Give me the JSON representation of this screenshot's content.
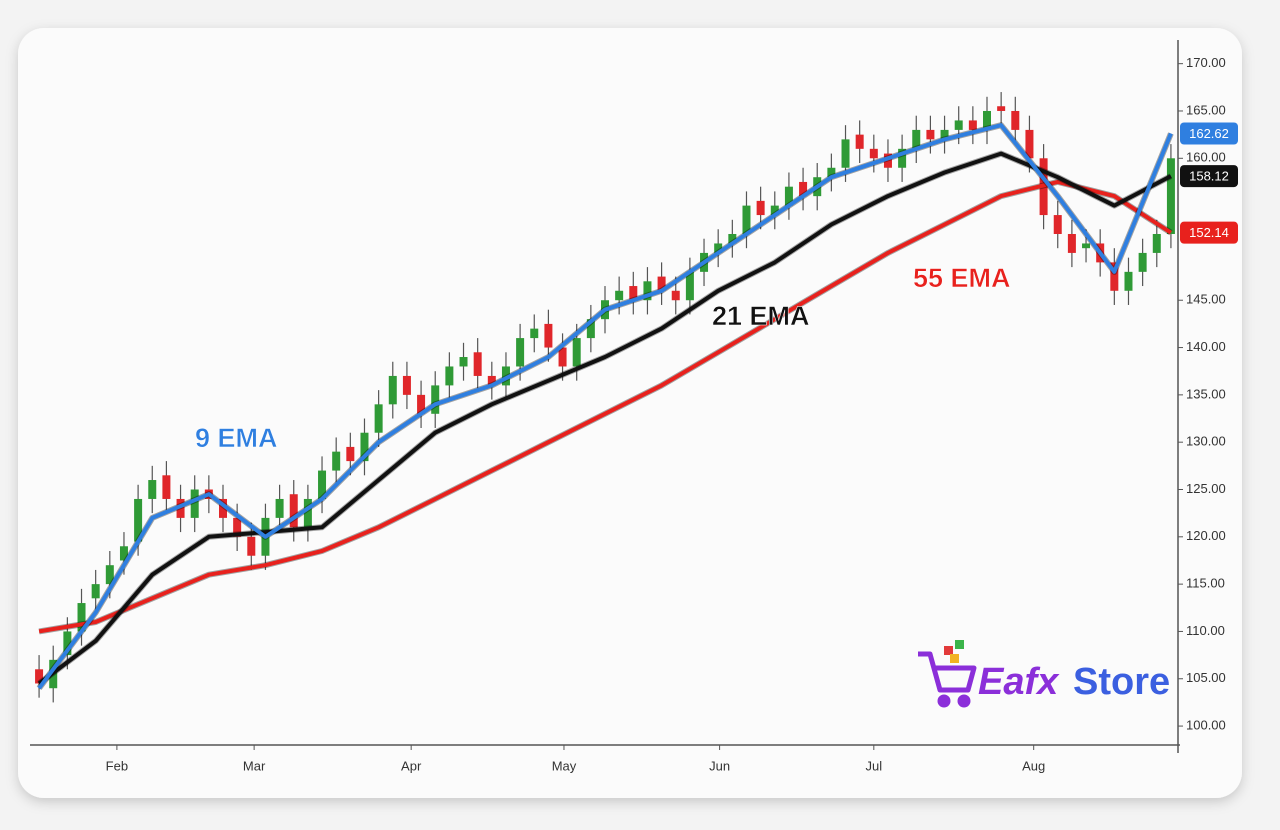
{
  "chart_data": {
    "type": "candlestick",
    "xlim": [
      -0.5,
      80.5
    ],
    "xticks": [
      {
        "value": 5.5,
        "label": "Feb"
      },
      {
        "value": 15.2,
        "label": "Mar"
      },
      {
        "value": 26.3,
        "label": "Apr"
      },
      {
        "value": 37.1,
        "label": "May"
      },
      {
        "value": 48.1,
        "label": "Jun"
      },
      {
        "value": 59,
        "label": "Jul"
      },
      {
        "value": 70.3,
        "label": "Aug"
      }
    ],
    "ylim": [
      98,
      172.5
    ],
    "yticks": [
      {
        "value": 100,
        "label": "100.00"
      },
      {
        "value": 105,
        "label": "105.00"
      },
      {
        "value": 110,
        "label": "110.00"
      },
      {
        "value": 115,
        "label": "115.00"
      },
      {
        "value": 120,
        "label": "120.00"
      },
      {
        "value": 125,
        "label": "125.00"
      },
      {
        "value": 130,
        "label": "130.00"
      },
      {
        "value": 135,
        "label": "135.00"
      },
      {
        "value": 140,
        "label": "140.00"
      },
      {
        "value": 145,
        "label": "145.00"
      },
      {
        "value": 160,
        "label": "160.00"
      },
      {
        "value": 165,
        "label": "165.00"
      },
      {
        "value": 170,
        "label": "170.00"
      }
    ],
    "up_color": "#2f9a36",
    "down_color": "#e0262a",
    "candles": {
      "x": [
        0,
        1,
        2,
        3,
        4,
        5,
        6,
        7,
        8,
        9,
        10,
        11,
        12,
        13,
        14,
        15,
        16,
        17,
        18,
        19,
        20,
        21,
        22,
        23,
        24,
        25,
        26,
        27,
        28,
        29,
        30,
        31,
        32,
        33,
        34,
        35,
        36,
        37,
        38,
        39,
        40,
        41,
        42,
        43,
        44,
        45,
        46,
        47,
        48,
        49,
        50,
        51,
        52,
        53,
        54,
        55,
        56,
        57,
        58,
        59,
        60,
        61,
        62,
        63,
        64,
        65,
        66,
        67,
        68,
        69,
        70,
        71,
        72,
        73,
        74,
        75,
        76,
        77,
        78,
        79,
        80
      ],
      "open": [
        106,
        104,
        107.5,
        110,
        113.5,
        115,
        117.5,
        119.5,
        124,
        126.5,
        124,
        122,
        125,
        124,
        122,
        120,
        118,
        122,
        124.5,
        121,
        124,
        127,
        129.5,
        128,
        131,
        134,
        137,
        135,
        133,
        136,
        138,
        139.5,
        137,
        136,
        138,
        141,
        142.5,
        140,
        138,
        141,
        143,
        145,
        146.5,
        145,
        147.5,
        146,
        145,
        148,
        150,
        151,
        152,
        155.5,
        154,
        155,
        157.5,
        156,
        158,
        159,
        162.5,
        161,
        160.5,
        159,
        161,
        163,
        162,
        163,
        164,
        163,
        165.5,
        165,
        163,
        160,
        154,
        152,
        150.5,
        151,
        149,
        146,
        148,
        150,
        152
      ],
      "high": [
        107.5,
        108.5,
        111.5,
        114.5,
        116.5,
        118.5,
        120.5,
        125.5,
        127.5,
        128,
        125.5,
        126.5,
        126.5,
        125.5,
        123.5,
        121.5,
        123.5,
        125.5,
        126,
        125.5,
        128.5,
        130.5,
        131,
        132.5,
        135.5,
        138.5,
        138.5,
        136.5,
        137.5,
        139.5,
        140.5,
        141,
        138.5,
        139.5,
        142.5,
        143.5,
        144,
        141.5,
        142.5,
        144.5,
        146.5,
        147.5,
        148,
        148.5,
        149,
        147.5,
        149.5,
        151.5,
        152.5,
        153.5,
        156.5,
        157,
        156.5,
        158.5,
        159,
        159.5,
        160.5,
        163.5,
        164,
        162.5,
        162,
        162.5,
        164.5,
        164.5,
        164.5,
        165.5,
        165.5,
        166.5,
        167,
        166.5,
        164.5,
        161.5,
        155.5,
        153.5,
        152.5,
        152.5,
        150.5,
        149.5,
        151.5,
        153.5,
        161.5
      ],
      "low": [
        103,
        102.5,
        106,
        108.5,
        112,
        113.5,
        116,
        118,
        122.5,
        122.5,
        120.5,
        120.5,
        122.5,
        120.5,
        118.5,
        116.5,
        116.5,
        120.5,
        119.5,
        119.5,
        122.5,
        125.5,
        126.5,
        126.5,
        129.5,
        132.5,
        133.5,
        131.5,
        131.5,
        134.5,
        136.5,
        135.5,
        134.5,
        134.5,
        136.5,
        139.5,
        138.5,
        136.5,
        136.5,
        139.5,
        141.5,
        143.5,
        143.5,
        143.5,
        144.5,
        143.5,
        143.5,
        146.5,
        148.5,
        149.5,
        150.5,
        152.5,
        152.5,
        153.5,
        154.5,
        154.5,
        156.5,
        157.5,
        159.5,
        158.5,
        157.5,
        157.5,
        159.5,
        160.5,
        160.5,
        161.5,
        161.5,
        161.5,
        163.5,
        161.5,
        158.5,
        152.5,
        150.5,
        148.5,
        149,
        147.5,
        144.5,
        144.5,
        146.5,
        148.5,
        150.5
      ],
      "close": [
        104.5,
        107,
        110,
        113,
        115,
        117,
        119,
        124,
        126,
        124,
        122,
        125,
        124,
        122,
        120,
        118,
        122,
        124,
        121,
        124,
        127,
        129,
        128,
        131,
        134,
        137,
        135,
        133,
        136,
        138,
        139,
        137,
        136,
        138,
        141,
        142,
        140,
        138,
        141,
        143,
        145,
        146,
        145,
        147,
        146,
        145,
        148,
        150,
        151,
        152,
        155,
        154,
        155,
        157,
        156,
        158,
        159,
        162,
        161,
        160,
        159,
        161,
        163,
        162,
        163,
        164,
        163,
        165,
        165,
        163,
        160,
        154,
        152,
        150,
        151,
        149,
        146,
        148,
        150,
        152,
        160
      ]
    },
    "series": [
      {
        "name": "55 EMA",
        "color": "#e8211d",
        "x": [
          0,
          4,
          8,
          12,
          16,
          20,
          24,
          28,
          32,
          36,
          40,
          44,
          48,
          52,
          56,
          60,
          64,
          68,
          72,
          76,
          80
        ],
        "values": [
          110,
          111,
          113.5,
          116,
          117,
          118.5,
          121,
          124,
          127,
          130,
          133,
          136,
          139.5,
          143,
          146.5,
          150,
          153,
          156,
          157.5,
          156,
          152.14
        ]
      },
      {
        "name": "21 EMA",
        "color": "#111111",
        "x": [
          0,
          4,
          8,
          12,
          16,
          20,
          24,
          28,
          32,
          36,
          40,
          44,
          48,
          52,
          56,
          60,
          64,
          68,
          72,
          76,
          80
        ],
        "values": [
          104.5,
          109,
          116,
          120,
          120.5,
          121,
          126,
          131,
          134,
          136.5,
          139,
          142,
          146,
          149,
          153,
          156,
          158.5,
          160.5,
          158,
          155,
          158.12
        ]
      },
      {
        "name": "9 EMA",
        "color": "#2f7fe0",
        "x": [
          0,
          4,
          8,
          12,
          16,
          20,
          24,
          28,
          32,
          36,
          40,
          44,
          48,
          52,
          56,
          60,
          64,
          68,
          72,
          76,
          80
        ],
        "values": [
          104,
          112,
          122,
          124.5,
          120,
          124,
          130,
          134,
          136,
          139,
          144,
          146,
          150,
          154,
          158,
          160,
          162,
          163.5,
          156,
          148,
          162.62
        ]
      }
    ],
    "watermark": [
      "Eafx",
      "Store"
    ]
  }
}
